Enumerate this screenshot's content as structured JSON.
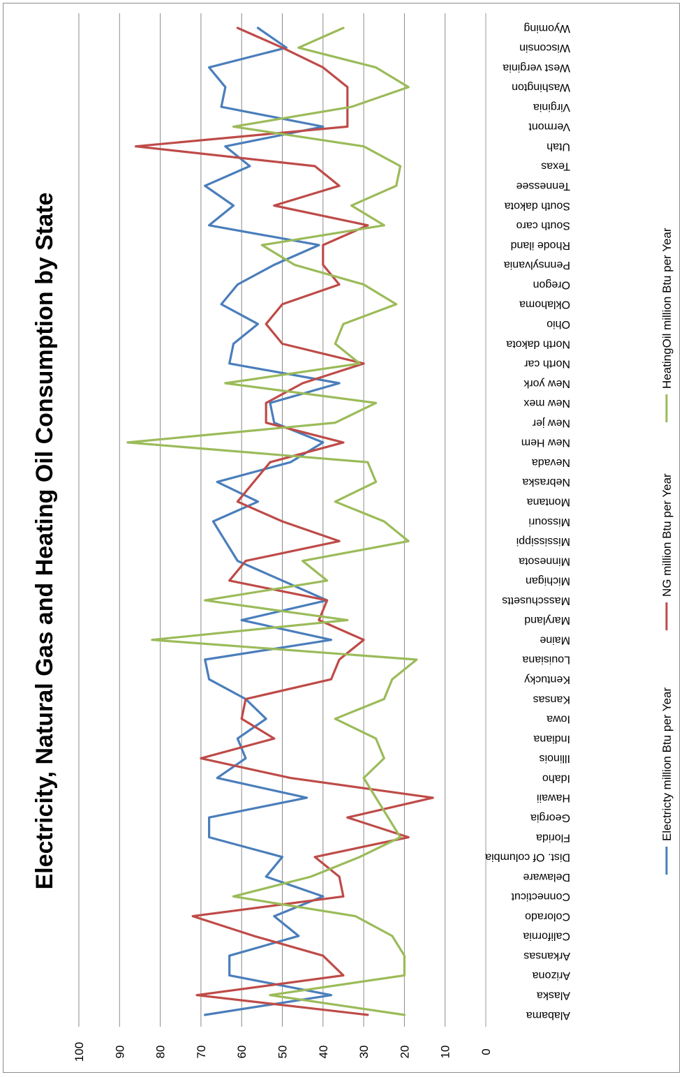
{
  "chart_data": {
    "type": "line",
    "title": "Electricity, Natural Gas and Heating Oil Consumption by State",
    "xlabel": "",
    "ylabel": "",
    "ylim": [
      0,
      100
    ],
    "yticks": [
      0,
      10,
      20,
      30,
      40,
      50,
      60,
      70,
      80,
      90,
      100
    ],
    "grid": true,
    "legend_position": "bottom",
    "categories": [
      "Alabama",
      "Alaska",
      "Arizona",
      "Arkansas",
      "California",
      "Colorado",
      "Connecticut",
      "Delaware",
      "Dist. Of columbia",
      "Florida",
      "Georgia",
      "Hawaii",
      "Idaho",
      "Illinois",
      "Indiana",
      "Iowa",
      "Kansas",
      "Kentucky",
      "Louisiana",
      "Maine",
      "Maryland",
      "Masschusetts",
      "Michigan",
      "Minnesota",
      "Mississippi",
      "Missouri",
      "Montana",
      "Nebraska",
      "Nevada",
      "New Hem",
      "New jer",
      "New mex",
      "New york",
      "North car",
      "North dakota",
      "Ohio",
      "Oklahoma",
      "Oregon",
      "Pennsylvania",
      "Rhode iland",
      "South caro",
      "South dakota",
      "Tennessee",
      "Texas",
      "Utah",
      "Vermont",
      "Virginia",
      "Washington",
      "West verginia",
      "Wisconsin",
      "Wyoming"
    ],
    "series": [
      {
        "name": "Electricty million Btu per Year",
        "color": "#4a7ebb",
        "values": [
          69,
          38,
          63,
          63,
          46,
          52,
          40,
          54,
          50,
          68,
          68,
          44,
          66,
          59,
          61,
          54,
          59,
          68,
          69,
          38,
          60,
          39,
          50,
          61,
          64,
          67,
          56,
          66,
          48,
          40,
          52,
          53,
          36,
          63,
          62,
          56,
          65,
          61,
          52,
          41,
          68,
          62,
          69,
          58,
          64,
          40,
          65,
          64,
          68,
          49,
          56
        ]
      },
      {
        "name": "NG million Btu per Year",
        "color": "#be4b48",
        "values": [
          29,
          71,
          35,
          40,
          57,
          72,
          35,
          36,
          42,
          19,
          34,
          13,
          48,
          70,
          52,
          60,
          59,
          38,
          36,
          30,
          41,
          39,
          63,
          59,
          36,
          50,
          61,
          57,
          53,
          35,
          54,
          54,
          45,
          30,
          50,
          54,
          50,
          36,
          40,
          40,
          29,
          52,
          36,
          42,
          86,
          34,
          34,
          34,
          40,
          50,
          61
        ]
      },
      {
        "name": "HeatingOil million Btu per Year",
        "color": "#9bbb59",
        "values": [
          20,
          53,
          20,
          20,
          23,
          32,
          62,
          43,
          31,
          21,
          24,
          27,
          30,
          25,
          27,
          37,
          25,
          23,
          17,
          82,
          34,
          69,
          39,
          45,
          19,
          25,
          37,
          27,
          29,
          88,
          37,
          27,
          64,
          31,
          37,
          35,
          22,
          30,
          47,
          55,
          25,
          33,
          22,
          21,
          30,
          62,
          33,
          19,
          27,
          46,
          35
        ]
      }
    ]
  }
}
